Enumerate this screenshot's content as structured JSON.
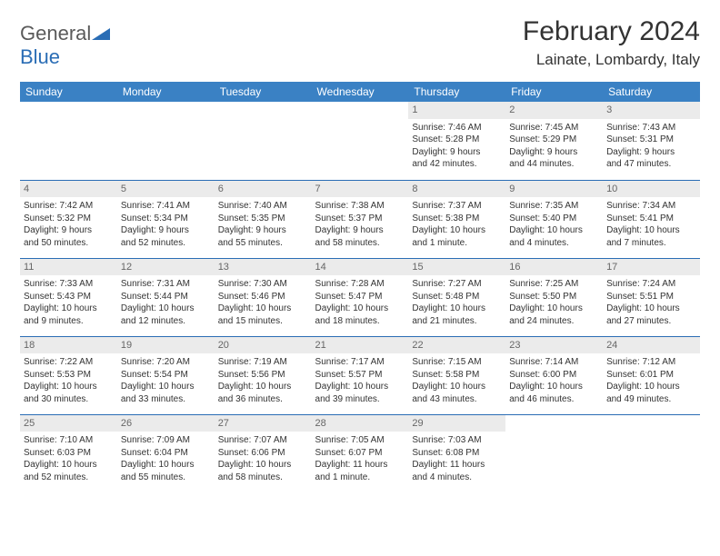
{
  "logo": {
    "part1": "General",
    "part2": "Blue"
  },
  "title": "February 2024",
  "location": "Lainate, Lombardy, Italy",
  "colors": {
    "header_bg": "#3a81c4",
    "header_text": "#ffffff",
    "daynum_bg": "#ebebeb",
    "border": "#2a6db5",
    "logo_gray": "#5a5a5a",
    "logo_blue": "#2a6db5"
  },
  "weekdays": [
    "Sunday",
    "Monday",
    "Tuesday",
    "Wednesday",
    "Thursday",
    "Friday",
    "Saturday"
  ],
  "weeks": [
    [
      {
        "n": "",
        "sun": "",
        "set": "",
        "d1": "",
        "d2": ""
      },
      {
        "n": "",
        "sun": "",
        "set": "",
        "d1": "",
        "d2": ""
      },
      {
        "n": "",
        "sun": "",
        "set": "",
        "d1": "",
        "d2": ""
      },
      {
        "n": "",
        "sun": "",
        "set": "",
        "d1": "",
        "d2": ""
      },
      {
        "n": "1",
        "sun": "Sunrise: 7:46 AM",
        "set": "Sunset: 5:28 PM",
        "d1": "Daylight: 9 hours",
        "d2": "and 42 minutes."
      },
      {
        "n": "2",
        "sun": "Sunrise: 7:45 AM",
        "set": "Sunset: 5:29 PM",
        "d1": "Daylight: 9 hours",
        "d2": "and 44 minutes."
      },
      {
        "n": "3",
        "sun": "Sunrise: 7:43 AM",
        "set": "Sunset: 5:31 PM",
        "d1": "Daylight: 9 hours",
        "d2": "and 47 minutes."
      }
    ],
    [
      {
        "n": "4",
        "sun": "Sunrise: 7:42 AM",
        "set": "Sunset: 5:32 PM",
        "d1": "Daylight: 9 hours",
        "d2": "and 50 minutes."
      },
      {
        "n": "5",
        "sun": "Sunrise: 7:41 AM",
        "set": "Sunset: 5:34 PM",
        "d1": "Daylight: 9 hours",
        "d2": "and 52 minutes."
      },
      {
        "n": "6",
        "sun": "Sunrise: 7:40 AM",
        "set": "Sunset: 5:35 PM",
        "d1": "Daylight: 9 hours",
        "d2": "and 55 minutes."
      },
      {
        "n": "7",
        "sun": "Sunrise: 7:38 AM",
        "set": "Sunset: 5:37 PM",
        "d1": "Daylight: 9 hours",
        "d2": "and 58 minutes."
      },
      {
        "n": "8",
        "sun": "Sunrise: 7:37 AM",
        "set": "Sunset: 5:38 PM",
        "d1": "Daylight: 10 hours",
        "d2": "and 1 minute."
      },
      {
        "n": "9",
        "sun": "Sunrise: 7:35 AM",
        "set": "Sunset: 5:40 PM",
        "d1": "Daylight: 10 hours",
        "d2": "and 4 minutes."
      },
      {
        "n": "10",
        "sun": "Sunrise: 7:34 AM",
        "set": "Sunset: 5:41 PM",
        "d1": "Daylight: 10 hours",
        "d2": "and 7 minutes."
      }
    ],
    [
      {
        "n": "11",
        "sun": "Sunrise: 7:33 AM",
        "set": "Sunset: 5:43 PM",
        "d1": "Daylight: 10 hours",
        "d2": "and 9 minutes."
      },
      {
        "n": "12",
        "sun": "Sunrise: 7:31 AM",
        "set": "Sunset: 5:44 PM",
        "d1": "Daylight: 10 hours",
        "d2": "and 12 minutes."
      },
      {
        "n": "13",
        "sun": "Sunrise: 7:30 AM",
        "set": "Sunset: 5:46 PM",
        "d1": "Daylight: 10 hours",
        "d2": "and 15 minutes."
      },
      {
        "n": "14",
        "sun": "Sunrise: 7:28 AM",
        "set": "Sunset: 5:47 PM",
        "d1": "Daylight: 10 hours",
        "d2": "and 18 minutes."
      },
      {
        "n": "15",
        "sun": "Sunrise: 7:27 AM",
        "set": "Sunset: 5:48 PM",
        "d1": "Daylight: 10 hours",
        "d2": "and 21 minutes."
      },
      {
        "n": "16",
        "sun": "Sunrise: 7:25 AM",
        "set": "Sunset: 5:50 PM",
        "d1": "Daylight: 10 hours",
        "d2": "and 24 minutes."
      },
      {
        "n": "17",
        "sun": "Sunrise: 7:24 AM",
        "set": "Sunset: 5:51 PM",
        "d1": "Daylight: 10 hours",
        "d2": "and 27 minutes."
      }
    ],
    [
      {
        "n": "18",
        "sun": "Sunrise: 7:22 AM",
        "set": "Sunset: 5:53 PM",
        "d1": "Daylight: 10 hours",
        "d2": "and 30 minutes."
      },
      {
        "n": "19",
        "sun": "Sunrise: 7:20 AM",
        "set": "Sunset: 5:54 PM",
        "d1": "Daylight: 10 hours",
        "d2": "and 33 minutes."
      },
      {
        "n": "20",
        "sun": "Sunrise: 7:19 AM",
        "set": "Sunset: 5:56 PM",
        "d1": "Daylight: 10 hours",
        "d2": "and 36 minutes."
      },
      {
        "n": "21",
        "sun": "Sunrise: 7:17 AM",
        "set": "Sunset: 5:57 PM",
        "d1": "Daylight: 10 hours",
        "d2": "and 39 minutes."
      },
      {
        "n": "22",
        "sun": "Sunrise: 7:15 AM",
        "set": "Sunset: 5:58 PM",
        "d1": "Daylight: 10 hours",
        "d2": "and 43 minutes."
      },
      {
        "n": "23",
        "sun": "Sunrise: 7:14 AM",
        "set": "Sunset: 6:00 PM",
        "d1": "Daylight: 10 hours",
        "d2": "and 46 minutes."
      },
      {
        "n": "24",
        "sun": "Sunrise: 7:12 AM",
        "set": "Sunset: 6:01 PM",
        "d1": "Daylight: 10 hours",
        "d2": "and 49 minutes."
      }
    ],
    [
      {
        "n": "25",
        "sun": "Sunrise: 7:10 AM",
        "set": "Sunset: 6:03 PM",
        "d1": "Daylight: 10 hours",
        "d2": "and 52 minutes."
      },
      {
        "n": "26",
        "sun": "Sunrise: 7:09 AM",
        "set": "Sunset: 6:04 PM",
        "d1": "Daylight: 10 hours",
        "d2": "and 55 minutes."
      },
      {
        "n": "27",
        "sun": "Sunrise: 7:07 AM",
        "set": "Sunset: 6:06 PM",
        "d1": "Daylight: 10 hours",
        "d2": "and 58 minutes."
      },
      {
        "n": "28",
        "sun": "Sunrise: 7:05 AM",
        "set": "Sunset: 6:07 PM",
        "d1": "Daylight: 11 hours",
        "d2": "and 1 minute."
      },
      {
        "n": "29",
        "sun": "Sunrise: 7:03 AM",
        "set": "Sunset: 6:08 PM",
        "d1": "Daylight: 11 hours",
        "d2": "and 4 minutes."
      },
      {
        "n": "",
        "sun": "",
        "set": "",
        "d1": "",
        "d2": ""
      },
      {
        "n": "",
        "sun": "",
        "set": "",
        "d1": "",
        "d2": ""
      }
    ]
  ]
}
